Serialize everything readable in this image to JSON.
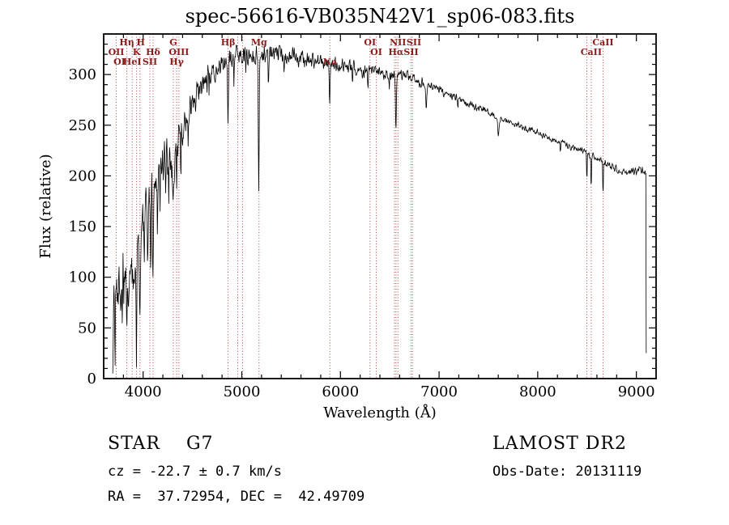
{
  "info": {
    "class_label": "STAR    G7",
    "survey": "LAMOST DR2",
    "cz": "cz = -22.7 ± 0.7 km/s",
    "obs_date": "Obs-Date: 20131119",
    "radec": "RA =  37.72954, DEC =  42.49709"
  },
  "chart_data": {
    "type": "line",
    "title": "spec-56616-VB035N42V1_sp06-083.fits",
    "xlabel": "Wavelength (Å)",
    "ylabel": "Flux (relative)",
    "xlim": [
      3600,
      9200
    ],
    "ylim": [
      0,
      340
    ],
    "x_ticks": [
      4000,
      5000,
      6000,
      7000,
      8000,
      9000
    ],
    "y_ticks": [
      0,
      50,
      100,
      150,
      200,
      250,
      300
    ],
    "x_minor_step": 200,
    "y_minor_step": 10,
    "grid": false,
    "legend": "none",
    "line_color": "#000000",
    "marker_line_color": "#b34747",
    "marker_label_color": "#8b1a1a",
    "spectral_lines": [
      3727,
      3835,
      3889,
      3933,
      3968,
      4068,
      4101,
      4305,
      4340,
      4363,
      4861,
      4959,
      5007,
      5175,
      5893,
      6300,
      6363,
      6548,
      6563,
      6583,
      6716,
      6731,
      8498,
      8542,
      8662
    ],
    "line_labels": [
      {
        "text": "Hη",
        "x": 3835,
        "row": 1
      },
      {
        "text": "H",
        "x": 3975,
        "row": 1
      },
      {
        "text": "G",
        "x": 4305,
        "row": 1
      },
      {
        "text": "Hβ",
        "x": 4861,
        "row": 1
      },
      {
        "text": "Mg",
        "x": 5175,
        "row": 1
      },
      {
        "text": "OI",
        "x": 6300,
        "row": 1
      },
      {
        "text": "NII",
        "x": 6583,
        "row": 1
      },
      {
        "text": "SII",
        "x": 6745,
        "row": 1
      },
      {
        "text": "CaII",
        "x": 8662,
        "row": 1
      },
      {
        "text": "OII",
        "x": 3727,
        "row": 2
      },
      {
        "text": "K",
        "x": 3933,
        "row": 2
      },
      {
        "text": "Hδ",
        "x": 4101,
        "row": 2
      },
      {
        "text": "OIII",
        "x": 4363,
        "row": 2
      },
      {
        "text": "OI",
        "x": 6363,
        "row": 2
      },
      {
        "text": "Hα",
        "x": 6563,
        "row": 2
      },
      {
        "text": "SII",
        "x": 6716,
        "row": 2
      },
      {
        "text": "CaII",
        "x": 8542,
        "row": 2
      },
      {
        "text": "OI",
        "x": 3760,
        "row": 3
      },
      {
        "text": "HeI",
        "x": 3889,
        "row": 3
      },
      {
        "text": "SII",
        "x": 4068,
        "row": 3
      },
      {
        "text": "Hγ",
        "x": 4340,
        "row": 3
      },
      {
        "text": "Na",
        "x": 5893,
        "row": 3
      }
    ],
    "spectrum": {
      "x_start": 3692,
      "x_end": 9100,
      "sample_step": 4,
      "start_flux": 5,
      "end_flux": 25,
      "envelope": [
        [
          3692,
          60
        ],
        [
          3720,
          82
        ],
        [
          3750,
          95
        ],
        [
          3800,
          105
        ],
        [
          3850,
          105
        ],
        [
          3900,
          120
        ],
        [
          3950,
          135
        ],
        [
          4000,
          150
        ],
        [
          4050,
          165
        ],
        [
          4100,
          182
        ],
        [
          4150,
          200
        ],
        [
          4200,
          215
        ],
        [
          4250,
          218
        ],
        [
          4300,
          220
        ],
        [
          4350,
          235
        ],
        [
          4400,
          246
        ],
        [
          4450,
          260
        ],
        [
          4500,
          272
        ],
        [
          4550,
          280
        ],
        [
          4600,
          288
        ],
        [
          4650,
          295
        ],
        [
          4700,
          302
        ],
        [
          4750,
          306
        ],
        [
          4800,
          310
        ],
        [
          4850,
          312
        ],
        [
          4900,
          318
        ],
        [
          4950,
          320
        ],
        [
          5000,
          320
        ],
        [
          5100,
          318
        ],
        [
          5200,
          318
        ],
        [
          5300,
          320
        ],
        [
          5400,
          320
        ],
        [
          5500,
          318
        ],
        [
          5600,
          316
        ],
        [
          5700,
          314
        ],
        [
          5800,
          312
        ],
        [
          5900,
          310
        ],
        [
          6000,
          310
        ],
        [
          6100,
          307
        ],
        [
          6200,
          305
        ],
        [
          6300,
          303
        ],
        [
          6400,
          301
        ],
        [
          6500,
          300
        ],
        [
          6600,
          299
        ],
        [
          6700,
          297
        ],
        [
          6800,
          293
        ],
        [
          6900,
          289
        ],
        [
          7000,
          285
        ],
        [
          7100,
          280
        ],
        [
          7200,
          276
        ],
        [
          7300,
          271
        ],
        [
          7400,
          267
        ],
        [
          7500,
          263
        ],
        [
          7600,
          258
        ],
        [
          7700,
          254
        ],
        [
          7800,
          250
        ],
        [
          7900,
          246
        ],
        [
          8000,
          243
        ],
        [
          8100,
          238
        ],
        [
          8200,
          234
        ],
        [
          8300,
          230
        ],
        [
          8400,
          227
        ],
        [
          8500,
          222
        ],
        [
          8600,
          217
        ],
        [
          8700,
          212
        ],
        [
          8800,
          207
        ],
        [
          8900,
          203
        ],
        [
          9000,
          205
        ],
        [
          9060,
          207
        ],
        [
          9100,
          200
        ]
      ],
      "absorption_lines": [
        {
          "center": 3715,
          "depth": 70,
          "width": 3
        },
        {
          "center": 3762,
          "depth": 60,
          "width": 3
        },
        {
          "center": 3790,
          "depth": 55,
          "width": 3
        },
        {
          "center": 3835,
          "depth": 55,
          "width": 4
        },
        {
          "center": 3889,
          "depth": 60,
          "width": 4
        },
        {
          "center": 3933,
          "depth": 95,
          "width": 5
        },
        {
          "center": 3968,
          "depth": 85,
          "width": 5
        },
        {
          "center": 4010,
          "depth": 55,
          "width": 3
        },
        {
          "center": 4045,
          "depth": 45,
          "width": 3
        },
        {
          "center": 4078,
          "depth": 55,
          "width": 4
        },
        {
          "center": 4101,
          "depth": 70,
          "width": 6
        },
        {
          "center": 4144,
          "depth": 45,
          "width": 3
        },
        {
          "center": 4172,
          "depth": 40,
          "width": 3
        },
        {
          "center": 4227,
          "depth": 40,
          "width": 4
        },
        {
          "center": 4260,
          "depth": 30,
          "width": 3
        },
        {
          "center": 4305,
          "depth": 45,
          "width": 10
        },
        {
          "center": 4340,
          "depth": 50,
          "width": 5
        },
        {
          "center": 4383,
          "depth": 45,
          "width": 4
        },
        {
          "center": 4455,
          "depth": 28,
          "width": 3
        },
        {
          "center": 4530,
          "depth": 25,
          "width": 3
        },
        {
          "center": 4668,
          "depth": 22,
          "width": 3
        },
        {
          "center": 4861,
          "depth": 60,
          "width": 6
        },
        {
          "center": 4920,
          "depth": 25,
          "width": 3
        },
        {
          "center": 5040,
          "depth": 18,
          "width": 3
        },
        {
          "center": 5172,
          "depth": 128,
          "width": 6
        },
        {
          "center": 5270,
          "depth": 30,
          "width": 4
        },
        {
          "center": 5430,
          "depth": 14,
          "width": 3
        },
        {
          "center": 5890,
          "depth": 35,
          "width": 7
        },
        {
          "center": 6122,
          "depth": 15,
          "width": 4
        },
        {
          "center": 6280,
          "depth": 15,
          "width": 4
        },
        {
          "center": 6495,
          "depth": 12,
          "width": 4
        },
        {
          "center": 6563,
          "depth": 55,
          "width": 6
        },
        {
          "center": 6870,
          "depth": 22,
          "width": 8
        },
        {
          "center": 7190,
          "depth": 10,
          "width": 6
        },
        {
          "center": 7600,
          "depth": 16,
          "width": 10
        },
        {
          "center": 8230,
          "depth": 10,
          "width": 5
        },
        {
          "center": 8498,
          "depth": 28,
          "width": 4
        },
        {
          "center": 8542,
          "depth": 38,
          "width": 4
        },
        {
          "center": 8662,
          "depth": 36,
          "width": 4
        }
      ],
      "noise": {
        "seed": 1337,
        "amplitude_anchors": [
          [
            3692,
            45
          ],
          [
            3750,
            40
          ],
          [
            3850,
            35
          ],
          [
            3950,
            33
          ],
          [
            4100,
            28
          ],
          [
            4300,
            22
          ],
          [
            4500,
            15
          ],
          [
            4700,
            12
          ],
          [
            5000,
            10
          ],
          [
            5400,
            9
          ],
          [
            5800,
            8
          ],
          [
            6200,
            7
          ],
          [
            6600,
            6
          ],
          [
            6900,
            5
          ],
          [
            7200,
            4
          ],
          [
            7600,
            3
          ],
          [
            8000,
            3
          ],
          [
            8400,
            3.5
          ],
          [
            8800,
            3.5
          ],
          [
            9100,
            4
          ]
        ]
      }
    }
  }
}
